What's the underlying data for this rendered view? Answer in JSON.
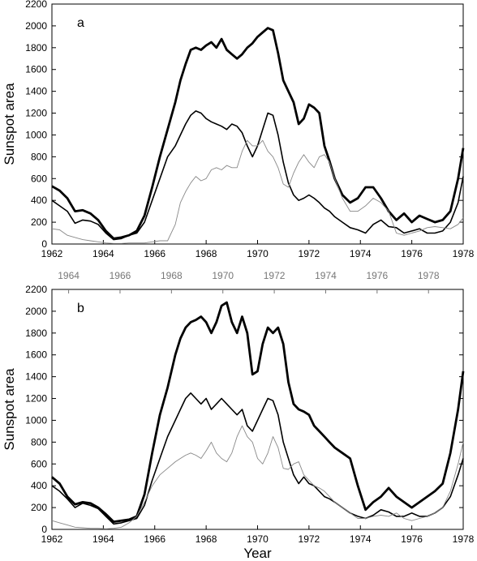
{
  "chart_data": [
    {
      "type": "line",
      "panel_label": "a",
      "ylabel": "Sunspot area",
      "xlabel": "",
      "xlim": [
        1962,
        1978
      ],
      "ylim": [
        0,
        2200
      ],
      "xticks": [
        "1962",
        "1964",
        "1966",
        "1968",
        "1970",
        "1972",
        "1974",
        "1976",
        "1978"
      ],
      "yticks": [
        "0",
        "200",
        "400",
        "600",
        "800",
        "1000",
        "1200",
        "1400",
        "1600",
        "1800",
        "2000",
        "2200"
      ],
      "series": [
        {
          "style": "thick",
          "color": "#000000",
          "x": [
            1962.0,
            1962.3,
            1962.6,
            1962.9,
            1963.2,
            1963.5,
            1963.8,
            1964.1,
            1964.4,
            1964.7,
            1965.0,
            1965.3,
            1965.6,
            1965.9,
            1966.2,
            1966.5,
            1966.8,
            1967.0,
            1967.2,
            1967.4,
            1967.6,
            1967.8,
            1968.0,
            1968.2,
            1968.4,
            1968.6,
            1968.8,
            1969.0,
            1969.2,
            1969.4,
            1969.6,
            1969.8,
            1970.0,
            1970.2,
            1970.4,
            1970.6,
            1970.8,
            1971.0,
            1971.2,
            1971.4,
            1971.6,
            1971.8,
            1972.0,
            1972.2,
            1972.4,
            1972.6,
            1972.8,
            1973.0,
            1973.3,
            1973.6,
            1973.9,
            1974.2,
            1974.5,
            1974.8,
            1975.1,
            1975.4,
            1975.7,
            1976.0,
            1976.3,
            1976.6,
            1976.9,
            1977.2,
            1977.5,
            1977.8,
            1978.0
          ],
          "y": [
            530,
            490,
            420,
            300,
            310,
            280,
            220,
            120,
            50,
            60,
            80,
            120,
            260,
            520,
            800,
            1050,
            1300,
            1500,
            1650,
            1780,
            1800,
            1780,
            1820,
            1850,
            1800,
            1880,
            1780,
            1740,
            1700,
            1740,
            1800,
            1840,
            1900,
            1940,
            1980,
            1960,
            1750,
            1500,
            1400,
            1300,
            1100,
            1150,
            1280,
            1250,
            1200,
            900,
            760,
            600,
            450,
            380,
            420,
            520,
            520,
            420,
            300,
            220,
            280,
            200,
            260,
            230,
            200,
            220,
            300,
            600,
            880
          ]
        },
        {
          "style": "medium",
          "color": "#000000",
          "x": [
            1962.0,
            1962.3,
            1962.6,
            1962.9,
            1963.2,
            1963.5,
            1963.8,
            1964.1,
            1964.4,
            1964.7,
            1965.0,
            1965.3,
            1965.6,
            1965.9,
            1966.2,
            1966.5,
            1966.8,
            1967.0,
            1967.2,
            1967.4,
            1967.6,
            1967.8,
            1968.0,
            1968.2,
            1968.4,
            1968.6,
            1968.8,
            1969.0,
            1969.2,
            1969.4,
            1969.6,
            1969.8,
            1970.0,
            1970.2,
            1970.4,
            1970.6,
            1970.8,
            1971.0,
            1971.2,
            1971.4,
            1971.6,
            1971.8,
            1972.0,
            1972.2,
            1972.4,
            1972.6,
            1972.8,
            1973.0,
            1973.3,
            1973.6,
            1973.9,
            1974.2,
            1974.5,
            1974.8,
            1975.1,
            1975.4,
            1975.7,
            1976.0,
            1976.3,
            1976.6,
            1976.9,
            1977.2,
            1977.5,
            1977.8,
            1978.0
          ],
          "y": [
            400,
            350,
            300,
            190,
            220,
            210,
            180,
            100,
            40,
            50,
            80,
            100,
            200,
            400,
            600,
            800,
            900,
            1000,
            1100,
            1180,
            1220,
            1200,
            1150,
            1120,
            1100,
            1080,
            1050,
            1100,
            1080,
            1020,
            900,
            800,
            900,
            1050,
            1200,
            1180,
            1000,
            750,
            560,
            450,
            400,
            420,
            450,
            420,
            380,
            330,
            300,
            250,
            200,
            150,
            130,
            100,
            180,
            220,
            160,
            150,
            100,
            120,
            140,
            100,
            100,
            120,
            200,
            380,
            620
          ]
        },
        {
          "style": "thin",
          "color": "#888888",
          "x": [
            1962.0,
            1962.3,
            1962.6,
            1962.9,
            1963.2,
            1963.5,
            1963.8,
            1964.1,
            1964.4,
            1964.7,
            1965.0,
            1965.3,
            1965.6,
            1965.9,
            1966.2,
            1966.5,
            1966.8,
            1967.0,
            1967.2,
            1967.4,
            1967.6,
            1967.8,
            1968.0,
            1968.2,
            1968.4,
            1968.6,
            1968.8,
            1969.0,
            1969.2,
            1969.4,
            1969.6,
            1969.8,
            1970.0,
            1970.2,
            1970.4,
            1970.6,
            1970.8,
            1971.0,
            1971.2,
            1971.4,
            1971.6,
            1971.8,
            1972.0,
            1972.2,
            1972.4,
            1972.6,
            1972.8,
            1973.0,
            1973.3,
            1973.6,
            1973.9,
            1974.2,
            1974.5,
            1974.8,
            1975.1,
            1975.4,
            1975.7,
            1976.0,
            1976.3,
            1976.6,
            1976.9,
            1977.2,
            1977.5,
            1977.8,
            1978.0
          ],
          "y": [
            140,
            130,
            80,
            60,
            40,
            30,
            20,
            10,
            5,
            5,
            10,
            10,
            10,
            20,
            30,
            30,
            180,
            380,
            480,
            560,
            620,
            580,
            600,
            680,
            700,
            680,
            720,
            700,
            700,
            850,
            950,
            900,
            900,
            950,
            850,
            800,
            700,
            550,
            520,
            650,
            750,
            820,
            750,
            700,
            800,
            820,
            750,
            600,
            420,
            300,
            300,
            350,
            420,
            380,
            300,
            100,
            80,
            100,
            120,
            150,
            160,
            150,
            140,
            180,
            240
          ]
        }
      ]
    },
    {
      "type": "line",
      "panel_label": "b",
      "ylabel": "Sunspot area",
      "xlabel": "Year",
      "xlim": [
        1962,
        1978
      ],
      "ylim": [
        0,
        2200
      ],
      "xticks": [
        "1962",
        "1964",
        "1966",
        "1968",
        "1970",
        "1972",
        "1974",
        "1976",
        "1978"
      ],
      "top_xticks": [
        "1964",
        "1966",
        "1968",
        "1970",
        "1972",
        "1974",
        "1976",
        "1978"
      ],
      "yticks": [
        "0",
        "200",
        "400",
        "600",
        "800",
        "1000",
        "1200",
        "1400",
        "1600",
        "1800",
        "2000",
        "2200"
      ],
      "series": [
        {
          "style": "thick",
          "color": "#000000",
          "x": [
            1962.0,
            1962.3,
            1962.6,
            1962.9,
            1963.2,
            1963.5,
            1963.8,
            1964.1,
            1964.4,
            1964.7,
            1965.0,
            1965.3,
            1965.6,
            1965.9,
            1966.2,
            1966.5,
            1966.8,
            1967.0,
            1967.2,
            1967.4,
            1967.6,
            1967.8,
            1968.0,
            1968.2,
            1968.4,
            1968.6,
            1968.8,
            1969.0,
            1969.2,
            1969.4,
            1969.6,
            1969.8,
            1970.0,
            1970.2,
            1970.4,
            1970.6,
            1970.8,
            1971.0,
            1971.2,
            1971.4,
            1971.6,
            1971.8,
            1972.0,
            1972.2,
            1972.4,
            1972.6,
            1972.8,
            1973.0,
            1973.3,
            1973.6,
            1973.9,
            1974.2,
            1974.5,
            1974.8,
            1975.1,
            1975.4,
            1975.7,
            1976.0,
            1976.3,
            1976.6,
            1976.9,
            1977.2,
            1977.5,
            1977.8,
            1978.0
          ],
          "y": [
            480,
            420,
            300,
            230,
            250,
            240,
            200,
            140,
            70,
            80,
            90,
            120,
            320,
            700,
            1050,
            1300,
            1600,
            1750,
            1850,
            1900,
            1920,
            1950,
            1900,
            1800,
            1900,
            2050,
            2080,
            1900,
            1800,
            1950,
            1800,
            1420,
            1450,
            1700,
            1850,
            1800,
            1850,
            1700,
            1350,
            1150,
            1100,
            1080,
            1050,
            950,
            900,
            850,
            800,
            750,
            700,
            650,
            400,
            180,
            250,
            300,
            380,
            300,
            250,
            200,
            250,
            300,
            350,
            420,
            700,
            1100,
            1450
          ]
        },
        {
          "style": "medium",
          "color": "#000000",
          "x": [
            1962.0,
            1962.3,
            1962.6,
            1962.9,
            1963.2,
            1963.5,
            1963.8,
            1964.1,
            1964.4,
            1964.7,
            1965.0,
            1965.3,
            1965.6,
            1965.9,
            1966.2,
            1966.5,
            1966.8,
            1967.0,
            1967.2,
            1967.4,
            1967.6,
            1967.8,
            1968.0,
            1968.2,
            1968.4,
            1968.6,
            1968.8,
            1969.0,
            1969.2,
            1969.4,
            1969.6,
            1969.8,
            1970.0,
            1970.2,
            1970.4,
            1970.6,
            1970.8,
            1971.0,
            1971.2,
            1971.4,
            1971.6,
            1971.8,
            1972.0,
            1972.2,
            1972.4,
            1972.6,
            1972.8,
            1973.0,
            1973.3,
            1973.6,
            1973.9,
            1974.2,
            1974.5,
            1974.8,
            1975.1,
            1975.4,
            1975.7,
            1976.0,
            1976.3,
            1976.6,
            1976.9,
            1977.2,
            1977.5,
            1977.8,
            1978.0
          ],
          "y": [
            400,
            350,
            280,
            200,
            240,
            220,
            190,
            120,
            50,
            60,
            80,
            100,
            220,
            450,
            650,
            850,
            1000,
            1100,
            1200,
            1250,
            1200,
            1150,
            1200,
            1100,
            1150,
            1200,
            1150,
            1100,
            1050,
            1100,
            950,
            900,
            1000,
            1100,
            1200,
            1180,
            1050,
            800,
            650,
            500,
            420,
            480,
            420,
            400,
            350,
            300,
            280,
            250,
            200,
            150,
            120,
            100,
            130,
            180,
            160,
            120,
            120,
            150,
            120,
            120,
            150,
            200,
            300,
            500,
            650
          ]
        },
        {
          "style": "thin",
          "color": "#888888",
          "x": [
            1962.0,
            1962.3,
            1962.6,
            1962.9,
            1963.2,
            1963.5,
            1963.8,
            1964.1,
            1964.4,
            1964.7,
            1965.0,
            1965.3,
            1965.6,
            1965.9,
            1966.2,
            1966.5,
            1966.8,
            1967.0,
            1967.2,
            1967.4,
            1967.6,
            1967.8,
            1968.0,
            1968.2,
            1968.4,
            1968.6,
            1968.8,
            1969.0,
            1969.2,
            1969.4,
            1969.6,
            1969.8,
            1970.0,
            1970.2,
            1970.4,
            1970.6,
            1970.8,
            1971.0,
            1971.2,
            1971.4,
            1971.6,
            1971.8,
            1972.0,
            1972.2,
            1972.4,
            1972.6,
            1972.8,
            1973.0,
            1973.3,
            1973.6,
            1973.9,
            1974.2,
            1974.5,
            1974.8,
            1975.1,
            1975.4,
            1975.7,
            1976.0,
            1976.3,
            1976.6,
            1976.9,
            1977.2,
            1977.5,
            1977.8,
            1978.0
          ],
          "y": [
            80,
            60,
            40,
            20,
            15,
            10,
            10,
            5,
            10,
            20,
            60,
            120,
            250,
            400,
            500,
            560,
            620,
            650,
            680,
            700,
            680,
            650,
            720,
            800,
            700,
            650,
            620,
            700,
            850,
            950,
            850,
            800,
            650,
            600,
            700,
            850,
            750,
            560,
            550,
            600,
            620,
            500,
            450,
            400,
            380,
            350,
            300,
            250,
            200,
            150,
            100,
            100,
            120,
            130,
            120,
            150,
            100,
            80,
            100,
            120,
            150,
            200,
            350,
            600,
            800
          ]
        }
      ]
    }
  ]
}
